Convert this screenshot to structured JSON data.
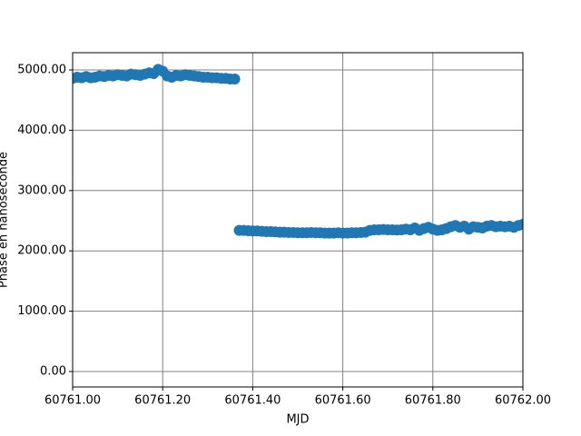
{
  "chart_data": {
    "type": "scatter",
    "xlabel": "MJD",
    "ylabel": "Phase en nanoseconde",
    "series": [
      {
        "name": "segment-1",
        "color": "#1f77b4",
        "x": [
          60761.0,
          60761.01,
          60761.02,
          60761.03,
          60761.04,
          60761.05,
          60761.06,
          60761.07,
          60761.08,
          60761.09,
          60761.1,
          60761.11,
          60761.12,
          60761.13,
          60761.14,
          60761.15,
          60761.16,
          60761.17,
          60761.18,
          60761.19,
          60761.2,
          60761.21,
          60761.22,
          60761.23,
          60761.24,
          60761.25,
          60761.26,
          60761.27,
          60761.28,
          60761.29,
          60761.3,
          60761.31,
          60761.32,
          60761.33,
          60761.34,
          60761.35,
          60761.36
        ],
        "values": [
          4860,
          4880,
          4870,
          4890,
          4870,
          4880,
          4900,
          4890,
          4910,
          4900,
          4920,
          4910,
          4900,
          4930,
          4920,
          4910,
          4930,
          4950,
          4940,
          5010,
          4980,
          4900,
          4880,
          4910,
          4900,
          4920,
          4910,
          4900,
          4890,
          4880,
          4880,
          4870,
          4870,
          4860,
          4860,
          4850,
          4850
        ]
      },
      {
        "name": "segment-2",
        "color": "#1f77b4",
        "x": [
          60761.37,
          60761.38,
          60761.39,
          60761.4,
          60761.41,
          60761.42,
          60761.43,
          60761.44,
          60761.45,
          60761.46,
          60761.47,
          60761.48,
          60761.49,
          60761.5,
          60761.51,
          60761.52,
          60761.53,
          60761.54,
          60761.55,
          60761.56,
          60761.57,
          60761.58,
          60761.59,
          60761.6,
          60761.61,
          60761.62,
          60761.63,
          60761.64,
          60761.65,
          60761.66,
          60761.67,
          60761.68,
          60761.69,
          60761.7,
          60761.71,
          60761.72,
          60761.73,
          60761.74,
          60761.75,
          60761.76,
          60761.77,
          60761.78,
          60761.79,
          60761.8,
          60761.81,
          60761.82,
          60761.83,
          60761.84,
          60761.85,
          60761.86,
          60761.87,
          60761.88,
          60761.89,
          60761.9,
          60761.91,
          60761.92,
          60761.93,
          60761.94,
          60761.95,
          60761.96,
          60761.97,
          60761.98,
          60761.99,
          60762.0
        ],
        "values": [
          2340,
          2340,
          2335,
          2330,
          2330,
          2325,
          2320,
          2320,
          2315,
          2310,
          2310,
          2305,
          2305,
          2300,
          2300,
          2300,
          2305,
          2300,
          2300,
          2295,
          2295,
          2295,
          2300,
          2295,
          2295,
          2300,
          2300,
          2305,
          2310,
          2340,
          2350,
          2350,
          2355,
          2350,
          2350,
          2345,
          2350,
          2360,
          2350,
          2380,
          2340,
          2370,
          2390,
          2360,
          2340,
          2350,
          2370,
          2400,
          2420,
          2390,
          2410,
          2360,
          2400,
          2390,
          2380,
          2410,
          2420,
          2400,
          2410,
          2400,
          2410,
          2390,
          2420,
          2440
        ]
      }
    ],
    "xlim": [
      60761,
      60762
    ],
    "xticks": [
      {
        "value": 60761,
        "label": "60761.00"
      },
      {
        "value": 60761.2,
        "label": "60761.20"
      },
      {
        "value": 60761.4,
        "label": "60761.40"
      },
      {
        "value": 60761.6,
        "label": "60761.60"
      },
      {
        "value": 60761.8,
        "label": "60761.80"
      },
      {
        "value": 60762,
        "label": "60762.00"
      }
    ],
    "ylim": [
      -256,
      5286
    ],
    "yticks": [
      {
        "value": 0,
        "label": "0.00"
      },
      {
        "value": 1000,
        "label": "1000.00"
      },
      {
        "value": 2000,
        "label": "2000.00"
      },
      {
        "value": 3000,
        "label": "3000.00"
      },
      {
        "value": 4000,
        "label": "4000.00"
      },
      {
        "value": 5000,
        "label": "5000.00"
      }
    ],
    "grid": true
  }
}
